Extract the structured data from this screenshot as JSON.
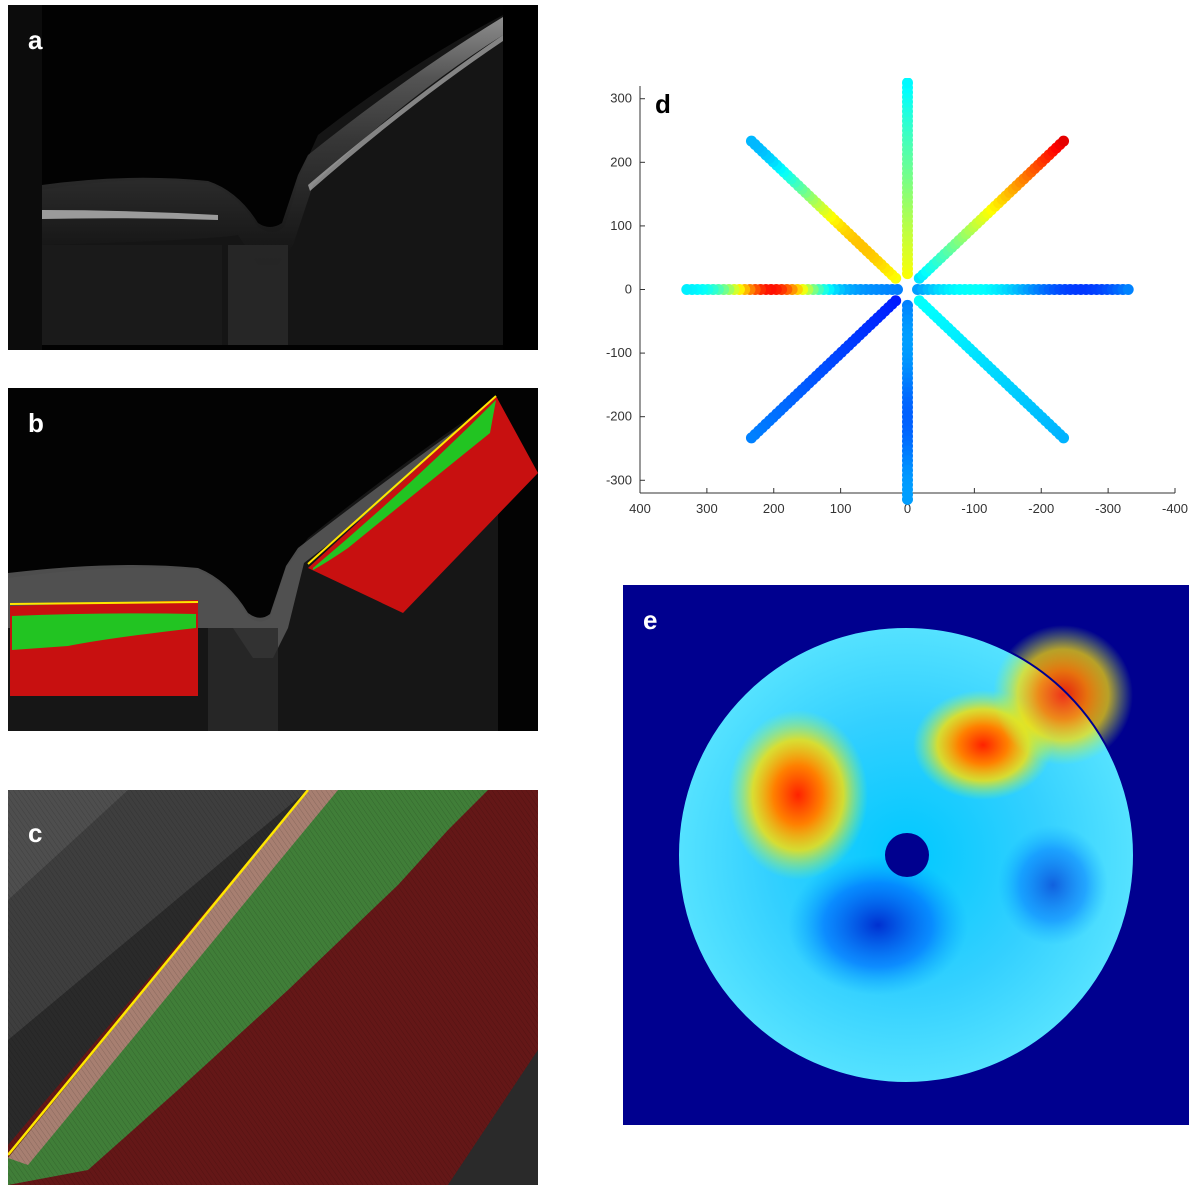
{
  "panels": {
    "a": {
      "label": "a"
    },
    "b": {
      "label": "b"
    },
    "c": {
      "label": "c"
    },
    "d": {
      "label": "d"
    },
    "e": {
      "label": "e"
    }
  },
  "colors": {
    "oct_background": "#000000",
    "choroid_overlay": "#c81010",
    "retina_overlay": "#22c422",
    "boundary_line": "#ffe600",
    "map_background": "#00008f"
  },
  "chart_data": {
    "type": "scatter",
    "title": "",
    "xlabel": "",
    "ylabel": "",
    "xlim": [
      400,
      -400
    ],
    "ylim": [
      -320,
      320
    ],
    "xticks": [
      400,
      300,
      200,
      100,
      0,
      -100,
      -200,
      -300,
      -400
    ],
    "yticks": [
      300,
      200,
      100,
      0,
      -100,
      -200,
      -300
    ],
    "colormap": "jet",
    "series": [
      {
        "angle_deg": 0,
        "radius": [
          15,
          330
        ],
        "color_profile": "mostly blue with light blue ends"
      },
      {
        "angle_deg": 45,
        "radius": [
          25,
          330
        ],
        "color_profile": "cyan to yellow to red"
      },
      {
        "angle_deg": 90,
        "radius": [
          25,
          325
        ],
        "color_profile": "yellow near center to cyan"
      },
      {
        "angle_deg": 135,
        "radius": [
          25,
          330
        ],
        "color_profile": "green-yellow-orange to cyan"
      },
      {
        "angle_deg": 180,
        "radius": [
          15,
          330
        ],
        "color_profile": "blue to orange-red to cyan"
      },
      {
        "angle_deg": 225,
        "radius": [
          25,
          330
        ],
        "color_profile": "dark blue to blue"
      },
      {
        "angle_deg": 270,
        "radius": [
          25,
          330
        ],
        "color_profile": "blue"
      },
      {
        "angle_deg": 315,
        "radius": [
          25,
          330
        ],
        "color_profile": "cyan to light blue"
      }
    ]
  }
}
